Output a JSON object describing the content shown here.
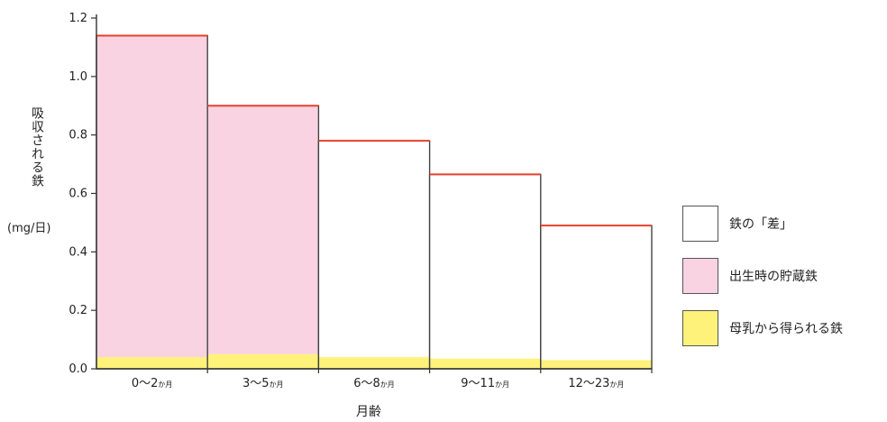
{
  "chart_data": {
    "type": "bar",
    "title": "",
    "ylabel": "吸収される鉄",
    "yunit": "(mg/日)",
    "xlabel": "月齢",
    "ylim": [
      0,
      1.2
    ],
    "yticks": [
      "0.0",
      "0.2",
      "0.4",
      "0.6",
      "0.8",
      "1.0",
      "1.2"
    ],
    "categories": [
      {
        "num": "0〜2",
        "unit": "か月"
      },
      {
        "num": "3〜5",
        "unit": "か月"
      },
      {
        "num": "6〜8",
        "unit": "か月"
      },
      {
        "num": "9〜11",
        "unit": "か月"
      },
      {
        "num": "12〜23",
        "unit": "か月"
      }
    ],
    "series": [
      {
        "name": "母乳から得られる鉄",
        "color": "#fff27a",
        "values": [
          0.04,
          0.05,
          0.04,
          0.035,
          0.03
        ]
      },
      {
        "name": "出生時の貯蔵鉄",
        "color": "#f9d3e2",
        "values": [
          1.1,
          0.85,
          0,
          0,
          0
        ]
      },
      {
        "name": "鉄の「差」",
        "color": "#ffffff",
        "values": [
          0,
          0,
          0.74,
          0.63,
          0.46
        ]
      }
    ],
    "totals": [
      1.14,
      0.9,
      0.78,
      0.665,
      0.49
    ],
    "total_line_color": "#e8412c",
    "legend": [
      {
        "name": "鉄の「差」",
        "color": "#ffffff"
      },
      {
        "name": "出生時の貯蔵鉄",
        "color": "#f9d3e2"
      },
      {
        "name": "母乳から得られる鉄",
        "color": "#fff27a"
      }
    ],
    "legend_position": "right"
  }
}
